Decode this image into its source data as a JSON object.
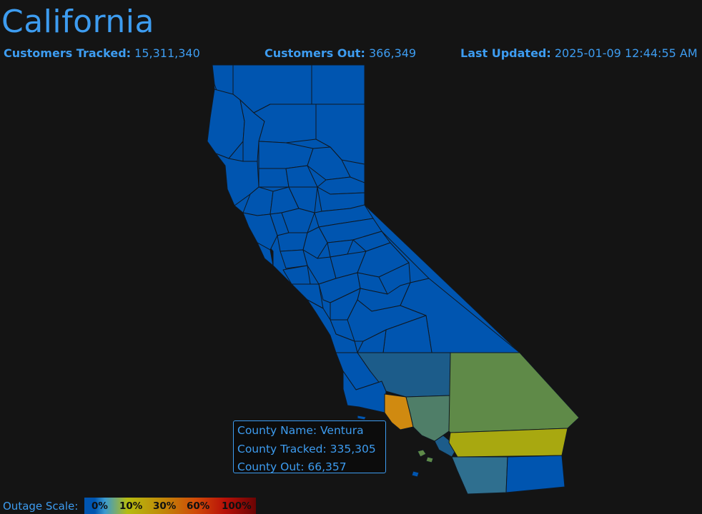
{
  "header": {
    "title": "California",
    "customers_tracked_label": "Customers Tracked:",
    "customers_tracked_value": "15,311,340",
    "customers_out_label": "Customers Out:",
    "customers_out_value": "366,349",
    "last_updated_label": "Last Updated:",
    "last_updated_value": "2025-01-09 12:44:55 AM"
  },
  "tooltip": {
    "county_name_label": "County Name:",
    "county_name": "Ventura",
    "county_tracked_label": "County Tracked:",
    "county_tracked": "335,305",
    "county_out_label": "County Out:",
    "county_out": "66,357"
  },
  "legend": {
    "label": "Outage Scale:",
    "ticks": [
      "0%",
      "10%",
      "30%",
      "60%",
      "100%"
    ]
  },
  "colors": {
    "text": "#3d9cf0",
    "background": "#141414",
    "level_0": "#0055b0",
    "level_low": "#1c5c8a",
    "level_teal": "#2f6f8f",
    "level_olive": "#5f8a48",
    "level_yellow": "#a8a810",
    "level_orange": "#d08a10"
  }
}
